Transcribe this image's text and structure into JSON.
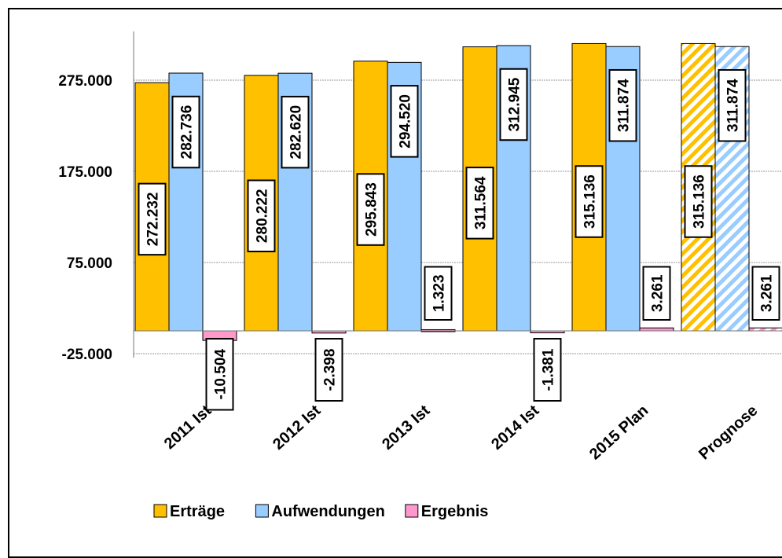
{
  "chart_data": {
    "type": "bar",
    "categories": [
      "2011 Ist",
      "2012 Ist",
      "2013 Ist",
      "2014 Ist",
      "2015 Plan",
      "Prognose"
    ],
    "series": [
      {
        "name": "Erträge",
        "values": [
          272232,
          280222,
          295843,
          311564,
          315136,
          315136
        ],
        "color": "#FFC000",
        "labels": [
          "272.232",
          "280.222",
          "295.843",
          "311.564",
          "315.136",
          "315.136"
        ]
      },
      {
        "name": "Aufwendungen",
        "values": [
          282736,
          282620,
          294520,
          312945,
          311874,
          311874
        ],
        "color": "#99CCFF",
        "labels": [
          "282.736",
          "282.620",
          "294.520",
          "312.945",
          "311.874",
          "311.874"
        ]
      },
      {
        "name": "Ergebnis",
        "values": [
          -10504,
          -2398,
          1323,
          -1381,
          3261,
          3261
        ],
        "color": "#FF99CC",
        "labels": [
          "-10.504",
          "-2.398",
          "1.323",
          "-1.381",
          "3.261",
          "3.261"
        ]
      }
    ],
    "hatched_categories": [
      "Prognose"
    ],
    "ylim": [
      -25000,
      325000
    ],
    "yticks": [
      -25000,
      75000,
      175000,
      275000
    ],
    "ytick_labels": [
      "-25.000",
      "75.000",
      "175.000",
      "275.000"
    ],
    "grid": true,
    "legend_position": "bottom"
  }
}
